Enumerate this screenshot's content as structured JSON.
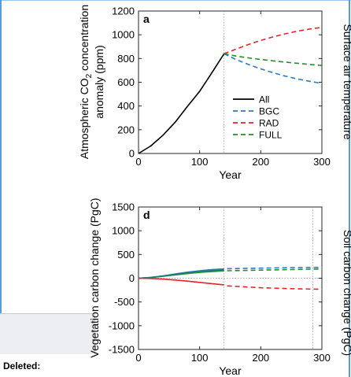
{
  "deleted_label": "Deleted:",
  "colors": {
    "All": "#000000",
    "BGC": "#2f7bc0",
    "RAD": "#e8202a",
    "FULL": "#2a8a2a",
    "veg_teal": "#16807a"
  },
  "chart_data": [
    {
      "type": "line",
      "panel_label": "a",
      "xlabel": "Year",
      "ylabel_prefix": "Atmospheric CO",
      "ylabel_sub": "2",
      "ylabel_suffix": " concentration",
      "ylabel_line2": "anomaly (ppm)",
      "right_label": "Surface air temperature",
      "xlim": [
        0,
        300
      ],
      "ylim": [
        0,
        1200
      ],
      "xticks": [
        "0",
        "100",
        "200",
        "300"
      ],
      "yticks": [
        "0",
        "200",
        "400",
        "600",
        "800",
        "1000",
        "1200"
      ],
      "vline_x": 140,
      "legend_position": "lower-right",
      "legend": [
        "All",
        "BGC",
        "RAD",
        "FULL"
      ],
      "series": [
        {
          "name": "All",
          "style": "solid",
          "x": [
            0,
            20,
            40,
            60,
            80,
            100,
            120,
            140
          ],
          "y": [
            0,
            63,
            154,
            264,
            396,
            524,
            680,
            840
          ]
        },
        {
          "name": "BGC",
          "style": "dashed",
          "x": [
            140,
            160,
            180,
            200,
            220,
            240,
            260,
            280,
            300
          ],
          "y": [
            840,
            790,
            750,
            713,
            680,
            652,
            628,
            608,
            590
          ]
        },
        {
          "name": "RAD",
          "style": "dashed",
          "x": [
            140,
            160,
            180,
            200,
            220,
            240,
            260,
            280,
            300
          ],
          "y": [
            840,
            880,
            918,
            952,
            982,
            1008,
            1030,
            1048,
            1062
          ]
        },
        {
          "name": "FULL",
          "style": "dashed",
          "x": [
            140,
            160,
            180,
            200,
            220,
            240,
            260,
            280,
            300
          ],
          "y": [
            840,
            820,
            805,
            792,
            780,
            770,
            760,
            750,
            741
          ]
        }
      ]
    },
    {
      "type": "line",
      "panel_label": "d",
      "xlabel": "Year",
      "ylabel": "Vegetation carbon change (PgC)",
      "right_label": "Soil carbon change (PgC)",
      "xlim": [
        0,
        300
      ],
      "ylim": [
        -1500,
        1500
      ],
      "xticks": [
        "0",
        "100",
        "200",
        "300"
      ],
      "yticks": [
        "-1500",
        "-1000",
        "-500",
        "0",
        "500",
        "1000",
        "1500"
      ],
      "vline_x": 140,
      "vline2_x": 285,
      "hline_y": 0,
      "series": [
        {
          "name": "BGC",
          "style": "solid",
          "x": [
            0,
            20,
            40,
            60,
            80,
            100,
            120,
            140
          ],
          "y": [
            0,
            18,
            50,
            90,
            128,
            158,
            180,
            195
          ]
        },
        {
          "name": "BGC",
          "style": "dashed",
          "x": [
            145,
            200,
            250,
            300
          ],
          "y": [
            200,
            212,
            222,
            230
          ]
        },
        {
          "name": "FULL",
          "style": "solid",
          "x": [
            0,
            20,
            40,
            60,
            80,
            100,
            120,
            140
          ],
          "y": [
            0,
            14,
            40,
            70,
            98,
            122,
            140,
            155
          ]
        },
        {
          "name": "FULL",
          "style": "dashed",
          "x": [
            145,
            200,
            250,
            300
          ],
          "y": [
            158,
            170,
            182,
            195
          ]
        },
        {
          "name": "veg_teal",
          "style": "solid",
          "x": [
            0,
            20,
            40,
            60,
            80,
            100,
            120,
            140
          ],
          "y": [
            0,
            16,
            46,
            82,
            115,
            142,
            162,
            176
          ]
        },
        {
          "name": "RAD",
          "style": "solid",
          "x": [
            0,
            20,
            40,
            60,
            80,
            100,
            120,
            140
          ],
          "y": [
            0,
            -5,
            -18,
            -38,
            -62,
            -88,
            -115,
            -140
          ]
        },
        {
          "name": "RAD",
          "style": "dashed",
          "x": [
            145,
            200,
            250,
            300
          ],
          "y": [
            -160,
            -200,
            -220,
            -232
          ]
        }
      ]
    }
  ]
}
